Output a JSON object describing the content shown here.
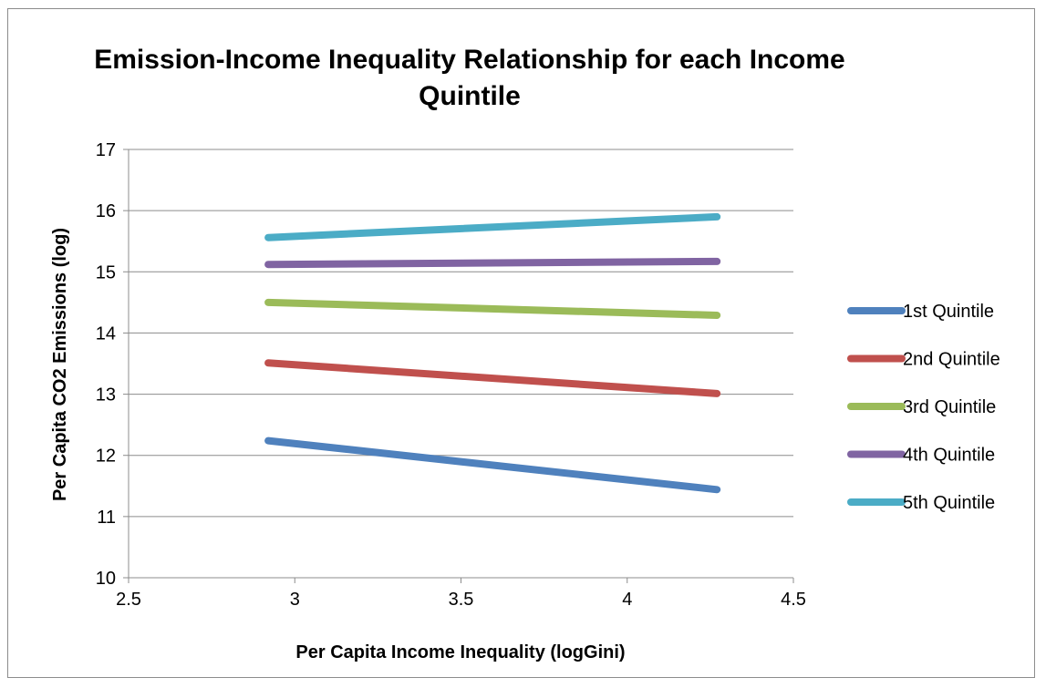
{
  "chart_data": {
    "type": "line",
    "title": "Emission-Income Inequality Relationship for each Income Quintile",
    "xlabel": "Per Capita Income Inequality (logGini)",
    "ylabel": "Per Capita CO2 Emissions (log)",
    "xlim": [
      2.5,
      4.5
    ],
    "ylim": [
      10,
      17
    ],
    "xticks": [
      2.5,
      3,
      3.5,
      4,
      4.5
    ],
    "yticks": [
      10,
      11,
      12,
      13,
      14,
      15,
      16,
      17
    ],
    "xtick_labels": [
      "2.5",
      "3",
      "3.5",
      "4",
      "4.5"
    ],
    "ytick_labels": [
      "10",
      "11",
      "12",
      "13",
      "14",
      "15",
      "16",
      "17"
    ],
    "grid": "horizontal",
    "legend_position": "right",
    "series": [
      {
        "name": "1st Quintile",
        "color": "#4F81BD",
        "x": [
          2.92,
          4.27
        ],
        "values": [
          12.24,
          11.44
        ]
      },
      {
        "name": "2nd Quintile",
        "color": "#C0504D",
        "x": [
          2.92,
          4.27
        ],
        "values": [
          13.51,
          13.01
        ]
      },
      {
        "name": "3rd Quintile",
        "color": "#9BBB59",
        "x": [
          2.92,
          4.27
        ],
        "values": [
          14.5,
          14.29
        ]
      },
      {
        "name": "4th Quintile",
        "color": "#8064A2",
        "x": [
          2.92,
          4.27
        ],
        "values": [
          15.12,
          15.17
        ]
      },
      {
        "name": "5th Quintile",
        "color": "#4BACC6",
        "x": [
          2.92,
          4.27
        ],
        "values": [
          15.56,
          15.9
        ]
      }
    ]
  }
}
